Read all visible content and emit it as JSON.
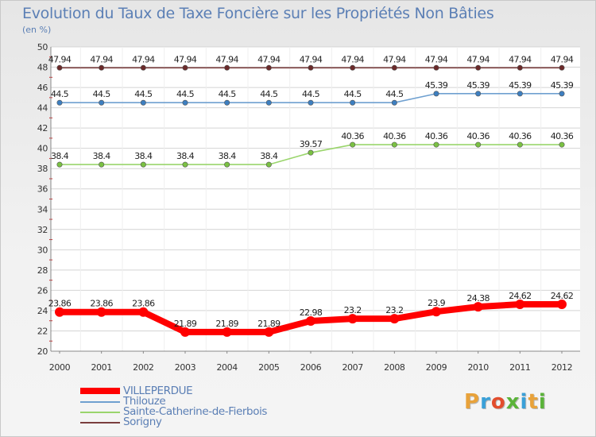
{
  "title": "Evolution du Taux de Taxe Foncière sur les Propriétés Non Bâties",
  "unit_label": "(en %)",
  "logo": {
    "text": "Proxiti",
    "letters": [
      "P",
      "r",
      "o",
      "x",
      "i",
      "t",
      "i"
    ],
    "colors": [
      "#e8a23a",
      "#3aa0d8",
      "#e24d2d",
      "#5ab339",
      "#3aa0d8",
      "#e8a23a",
      "#5ab339"
    ]
  },
  "chart_data": {
    "type": "line",
    "title": "Evolution du Taux de Taxe Foncière sur les Propriétés Non Bâties",
    "ylabel": "(en %)",
    "xlabel": "",
    "categories": [
      "2000",
      "2001",
      "2002",
      "2003",
      "2004",
      "2005",
      "2006",
      "2007",
      "2008",
      "2009",
      "2010",
      "2011",
      "2012"
    ],
    "ylim": [
      20,
      50
    ],
    "yticks": [
      "20",
      "22",
      "24",
      "26",
      "28",
      "30",
      "32",
      "34",
      "36",
      "38",
      "40",
      "42",
      "44",
      "46",
      "48",
      "50"
    ],
    "grid": "horizontal",
    "legend_position": "bottom-left",
    "series": [
      {
        "name": "VILLEPERDUE",
        "color": "#ff0000",
        "marker_color": "#ff0000",
        "bold": true,
        "values": [
          23.86,
          23.86,
          23.86,
          21.89,
          21.89,
          21.89,
          22.98,
          23.2,
          23.2,
          23.9,
          24.38,
          24.62,
          24.62
        ],
        "labels": [
          "23.86",
          "23.86",
          "23.86",
          "21.89",
          "21.89",
          "21.89",
          "22.98",
          "23.2",
          "23.2",
          "23.9",
          "24.38",
          "24.62",
          "24.62"
        ]
      },
      {
        "name": "Thilouze",
        "color": "#6fa0d0",
        "marker_color": "#3d7fc0",
        "bold": false,
        "values": [
          44.5,
          44.5,
          44.5,
          44.5,
          44.5,
          44.5,
          44.5,
          44.5,
          44.5,
          45.39,
          45.39,
          45.39,
          45.39
        ],
        "labels": [
          "44.5",
          "44.5",
          "44.5",
          "44.5",
          "44.5",
          "44.5",
          "44.5",
          "44.5",
          "44.5",
          "45.39",
          "45.39",
          "45.39",
          "45.39"
        ]
      },
      {
        "name": "Sainte-Catherine-de-Fierbois",
        "color": "#9ad56c",
        "marker_color": "#7ac142",
        "bold": false,
        "values": [
          38.4,
          38.4,
          38.4,
          38.4,
          38.4,
          38.4,
          39.57,
          40.36,
          40.36,
          40.36,
          40.36,
          40.36,
          40.36
        ],
        "labels": [
          "38.4",
          "38.4",
          "38.4",
          "38.4",
          "38.4",
          "38.4",
          "39.57",
          "40.36",
          "40.36",
          "40.36",
          "40.36",
          "40.36",
          "40.36"
        ]
      },
      {
        "name": "Sorigny",
        "color": "#7a3e3e",
        "marker_color": "#6b2a2a",
        "bold": false,
        "values": [
          47.94,
          47.94,
          47.94,
          47.94,
          47.94,
          47.94,
          47.94,
          47.94,
          47.94,
          47.94,
          47.94,
          47.94,
          47.94
        ],
        "labels": [
          "47.94",
          "47.94",
          "47.94",
          "47.94",
          "47.94",
          "47.94",
          "47.94",
          "47.94",
          "47.94",
          "47.94",
          "47.94",
          "47.94",
          "47.94"
        ]
      }
    ]
  }
}
